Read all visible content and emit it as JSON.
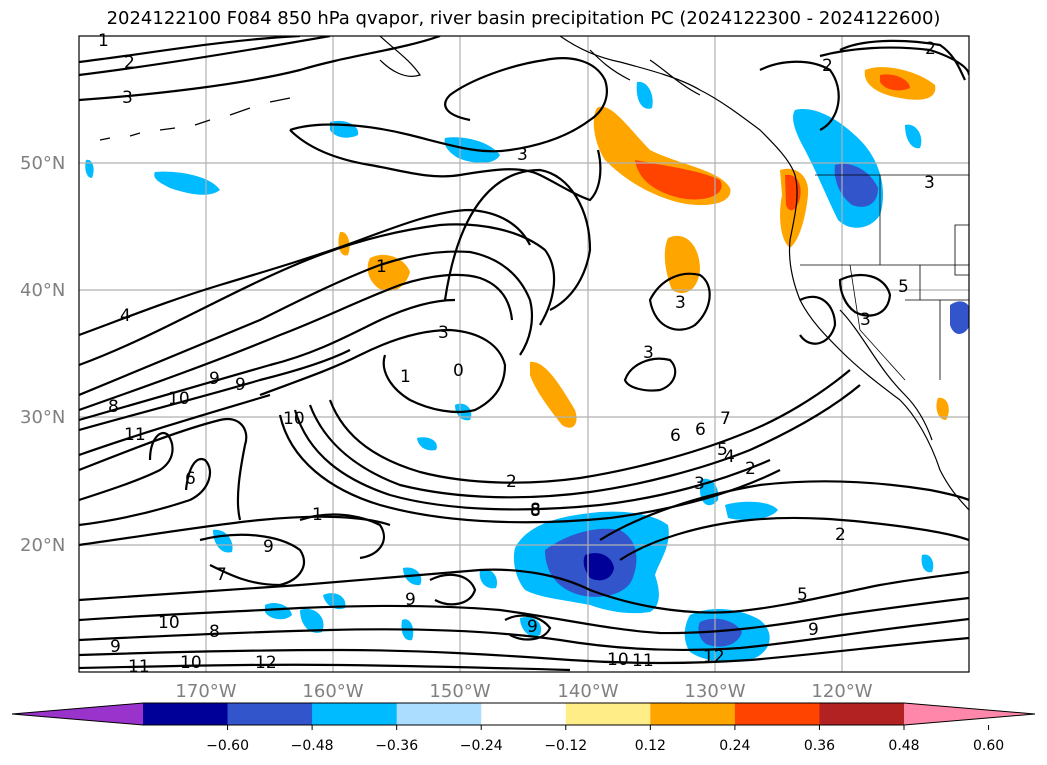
{
  "title": "2024122100 F084 850 hPa qvapor, river basin precipitation PC (2024122300 - 2024122600)",
  "lat_labels": [
    "50°N",
    "40°N",
    "30°N",
    "20°N"
  ],
  "lon_labels": [
    "170°W",
    "160°W",
    "150°W",
    "140°W",
    "130°W",
    "120°W"
  ],
  "colorbar": {
    "colors": [
      "#9933cc",
      "#000099",
      "#3355cc",
      "#00bbff",
      "#aaddff",
      "#ffffff",
      "#ffee88",
      "#ffa500",
      "#ff4400",
      "#b22222",
      "#ff88aa"
    ],
    "ticks": [
      "−0.60",
      "−0.48",
      "−0.36",
      "−0.24",
      "−0.12",
      "0.12",
      "0.24",
      "0.36",
      "0.48",
      "0.60"
    ]
  },
  "contour_labels": [
    "1",
    "2",
    "3",
    "1",
    "2",
    "3",
    "3",
    "2",
    "3",
    "4",
    "8",
    "10",
    "9",
    "11",
    "10",
    "1",
    "0",
    "3",
    "3",
    "6",
    "5",
    "3",
    "2",
    "8",
    "7",
    "6",
    "5",
    "4",
    "3",
    "2",
    "2",
    "5",
    "9",
    "12",
    "11",
    "10",
    "12",
    "11",
    "10",
    "9",
    "8",
    "9",
    "9",
    "9",
    "10",
    "8",
    "1",
    "6",
    "7",
    "9"
  ]
}
